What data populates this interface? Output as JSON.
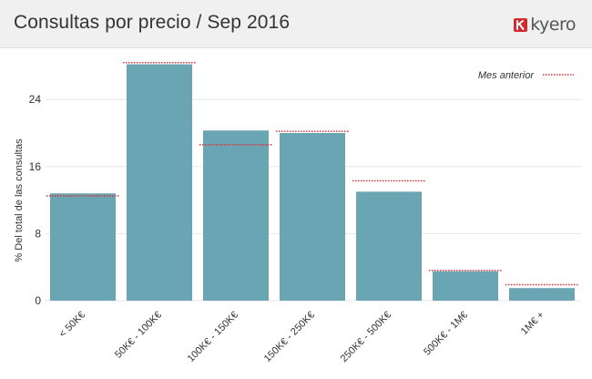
{
  "header": {
    "title": "Consultas por precio / Sep 2016",
    "logo_text": "kyero",
    "logo_icon": "kyero-logo-icon",
    "logo_color": "#d42a2f"
  },
  "colors": {
    "bar": "#6aa5b3",
    "previous_month_marker": "#e0303a",
    "grid": "#e6e6e6"
  },
  "chart_data": {
    "type": "bar",
    "title": "Consultas por precio / Sep 2016",
    "xlabel": "",
    "ylabel": "% Del total de las consultas",
    "ylim": [
      0,
      30
    ],
    "yticks": [
      0,
      8,
      16,
      24
    ],
    "grid": true,
    "legend_position": "top-right",
    "categories": [
      "< 50K€",
      "50K€ - 100K€",
      "100K€ - 150K€",
      "150K€ - 250K€",
      "250K€ - 500K€",
      "500K€ - 1M€",
      "1M€ +"
    ],
    "series": [
      {
        "values": [
          12.8,
          28.2,
          20.3,
          20.0,
          13.0,
          3.5,
          1.5
        ]
      },
      {
        "name": "Mes anterior",
        "style": "dotted-marker",
        "values": [
          12.5,
          28.4,
          18.6,
          20.2,
          14.3,
          3.6,
          1.9
        ]
      }
    ]
  }
}
